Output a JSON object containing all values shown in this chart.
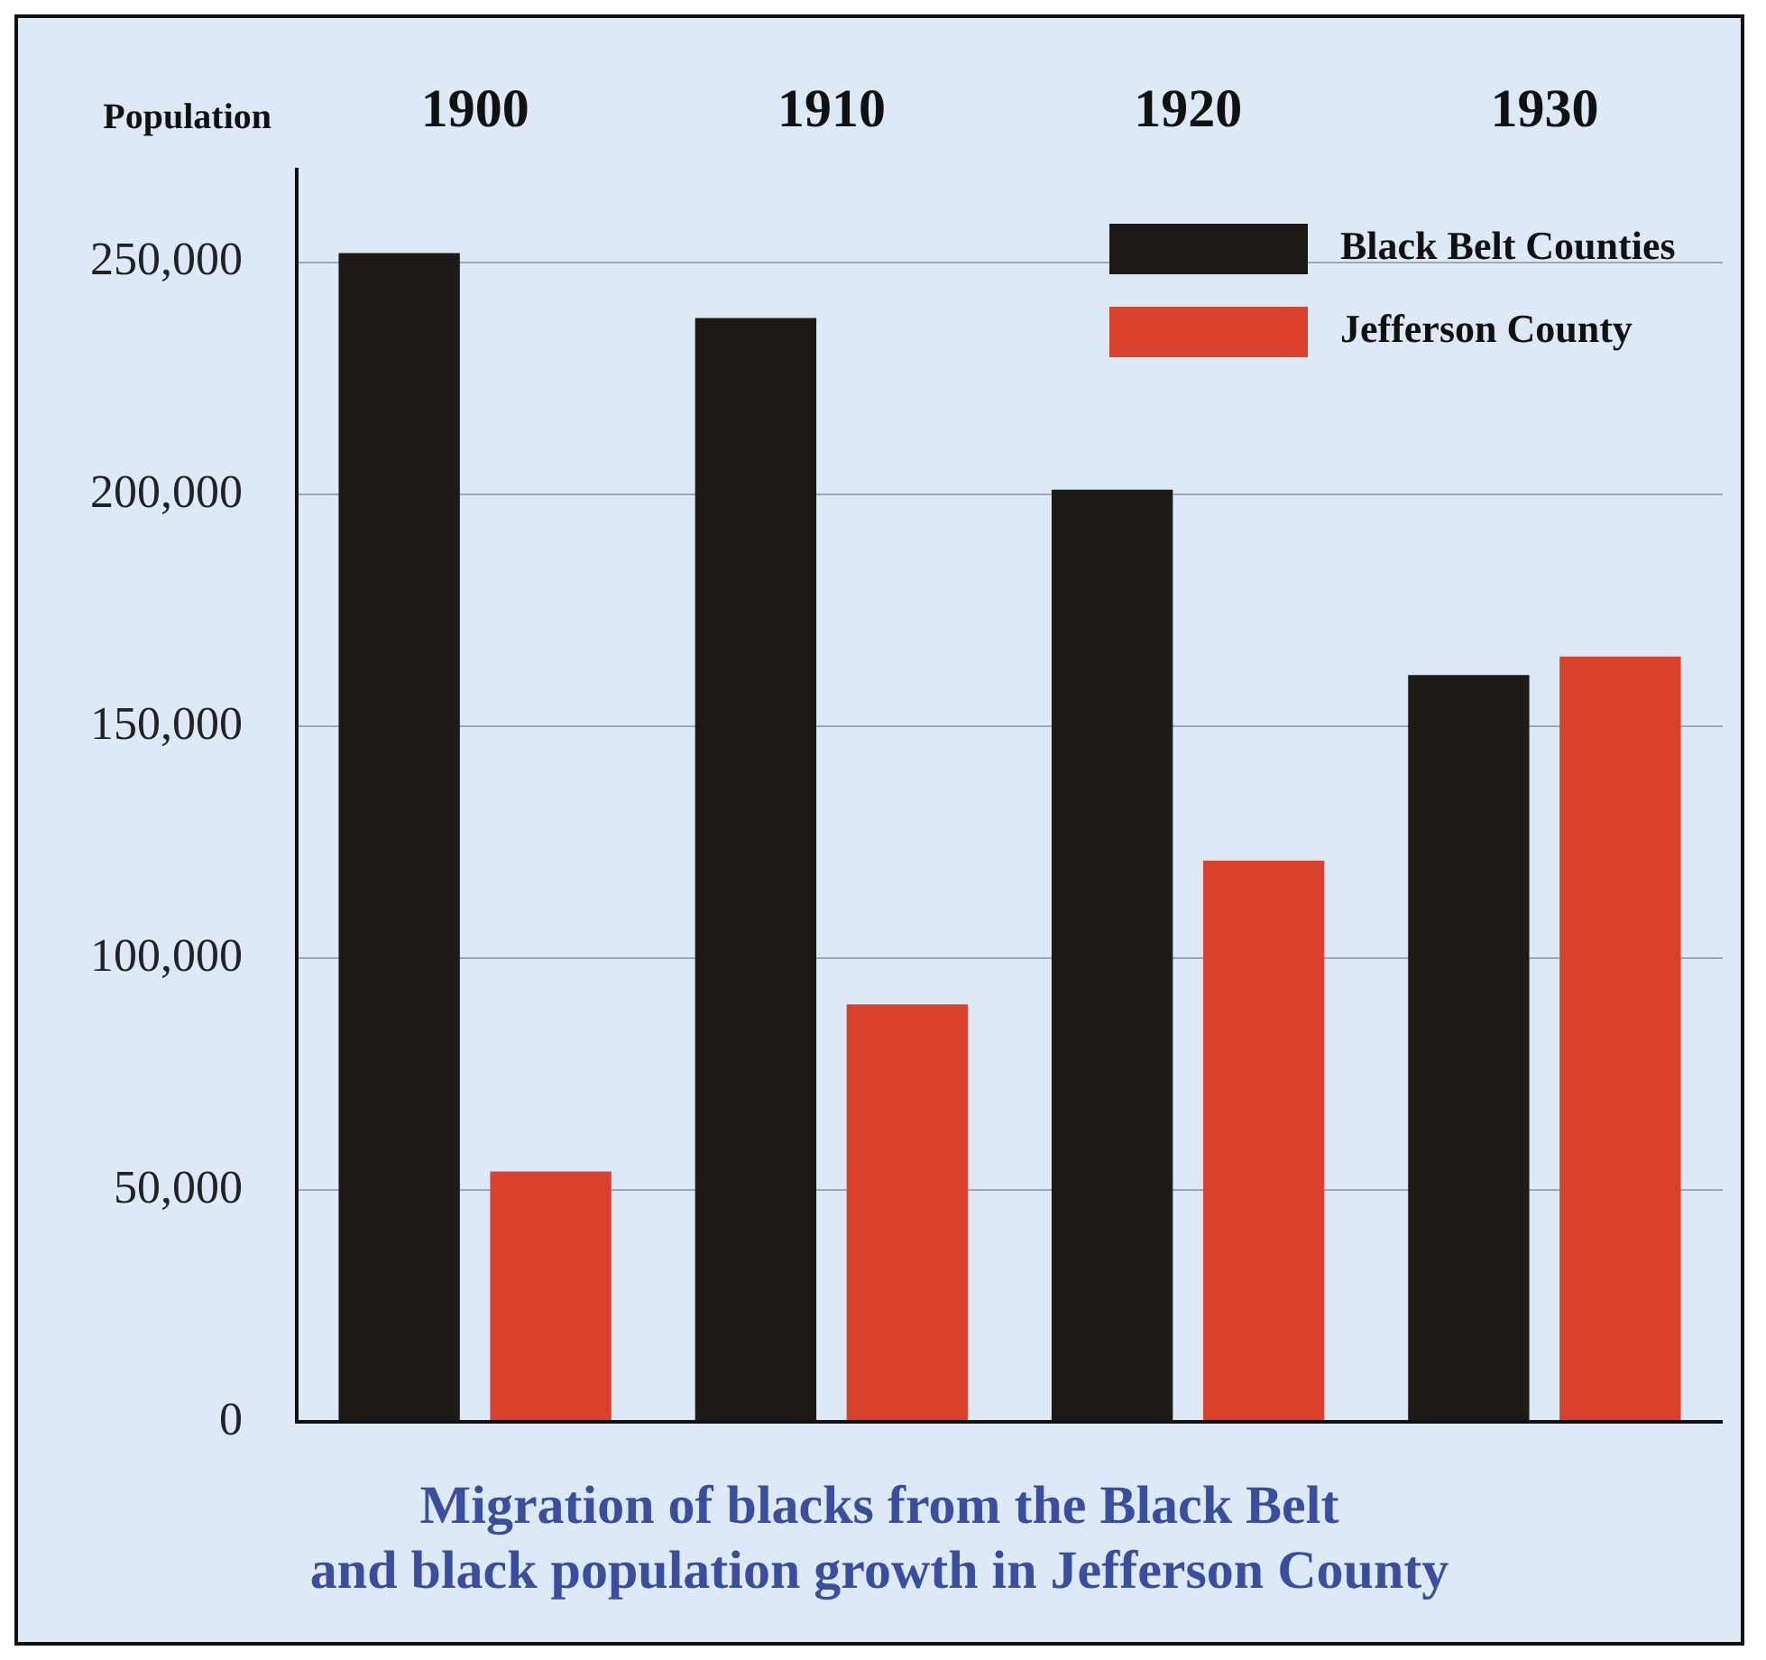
{
  "chart_data": {
    "type": "bar",
    "title": "Migration of blacks from the Black Belt and black population growth in Jefferson County",
    "ylabel": "Population",
    "categories": [
      "1900",
      "1910",
      "1920",
      "1930"
    ],
    "series": [
      {
        "name": "Black Belt Counties",
        "color": "#1e1a18",
        "values": [
          252000,
          238000,
          201000,
          161000
        ]
      },
      {
        "name": "Jefferson County",
        "color": "#d9412c",
        "values": [
          54000,
          90000,
          121000,
          165000
        ]
      }
    ],
    "ylim": [
      0,
      270000
    ],
    "yticks": [
      0,
      {
        "value": 50000,
        "label": "50,000"
      },
      {
        "value": 100000,
        "label": "100,000"
      },
      {
        "value": 150000,
        "label": "150,000"
      },
      {
        "value": 200000,
        "label": "200,000"
      },
      {
        "value": 250000,
        "label": "250,000"
      }
    ],
    "grid": "y",
    "legend": "top right"
  }
}
